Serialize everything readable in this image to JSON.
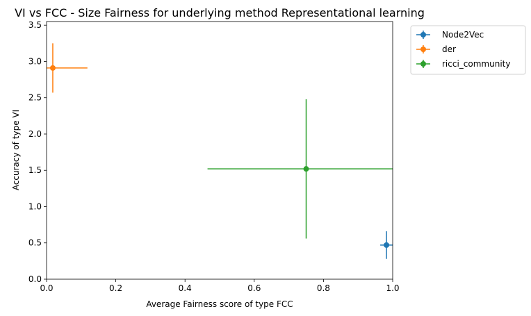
{
  "chart_data": {
    "type": "scatter",
    "title": "VI vs FCC - Size Fairness for underlying method Representational learning",
    "xlabel": "Average Fairness score of type FCC",
    "ylabel": "Accuracy of type VI",
    "xlim": [
      0.0,
      1.0
    ],
    "ylim": [
      0.0,
      3.55
    ],
    "xticks": [
      "0.0",
      "0.2",
      "0.4",
      "0.6",
      "0.8",
      "1.0"
    ],
    "yticks": [
      "0.0",
      "0.5",
      "1.0",
      "1.5",
      "2.0",
      "2.5",
      "3.0",
      "3.5"
    ],
    "grid": false,
    "legend_position": "outside-top-right",
    "series": [
      {
        "name": "Node2Vec",
        "color": "#1f77b4",
        "x": 0.982,
        "y": 0.47,
        "xerr": 0.018,
        "yerr": 0.19
      },
      {
        "name": "der",
        "color": "#ff7f0e",
        "x": 0.018,
        "y": 2.91,
        "xerr": 0.1,
        "yerr": 0.34
      },
      {
        "name": "ricci_community",
        "color": "#2ca02c",
        "x": 0.75,
        "y": 1.52,
        "xerr": 0.285,
        "yerr": 0.96
      }
    ]
  }
}
